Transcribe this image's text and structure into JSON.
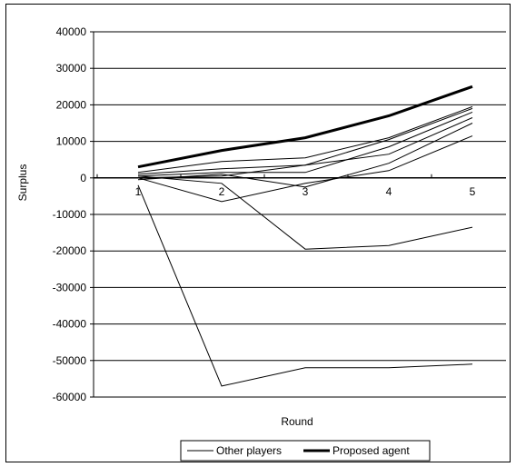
{
  "chart_data": {
    "type": "line",
    "title": "",
    "xlabel": "Round",
    "ylabel": "Surplus",
    "x": [
      1,
      2,
      3,
      4,
      5
    ],
    "xticks": [
      "1",
      "2",
      "3",
      "4",
      "5"
    ],
    "ylim": [
      -60000,
      40000
    ],
    "yticks": [
      "40000",
      "30000",
      "20000",
      "10000",
      "0",
      "-10000",
      "-20000",
      "-30000",
      "-40000",
      "-50000",
      "-60000"
    ],
    "grid": true,
    "legend": {
      "position": "bottom",
      "entries": [
        "Other players",
        "Proposed agent"
      ]
    },
    "series": [
      {
        "name": "Proposed agent",
        "bold": true,
        "values": [
          3000,
          7500,
          11000,
          17000,
          25000
        ]
      },
      {
        "name": "Other players",
        "bold": false,
        "values": [
          1500,
          4500,
          5500,
          11000,
          19500
        ]
      },
      {
        "name": "Other players",
        "bold": false,
        "values": [
          1000,
          2500,
          3500,
          10500,
          19000
        ]
      },
      {
        "name": "Other players",
        "bold": false,
        "values": [
          500,
          1500,
          1500,
          8500,
          18000
        ]
      },
      {
        "name": "Other players",
        "bold": false,
        "values": [
          0,
          500,
          3500,
          6500,
          16500
        ]
      },
      {
        "name": "Other players",
        "bold": false,
        "values": [
          -500,
          1000,
          -2500,
          4000,
          15000
        ]
      },
      {
        "name": "Other players",
        "bold": false,
        "values": [
          0,
          -6500,
          -1500,
          2000,
          11500
        ]
      },
      {
        "name": "Other players",
        "bold": false,
        "values": [
          500,
          -1500,
          -19500,
          -18500,
          -13500
        ]
      },
      {
        "name": "Other players",
        "bold": false,
        "values": [
          -2000,
          -57000,
          -52000,
          -52000,
          -51000
        ]
      }
    ]
  }
}
